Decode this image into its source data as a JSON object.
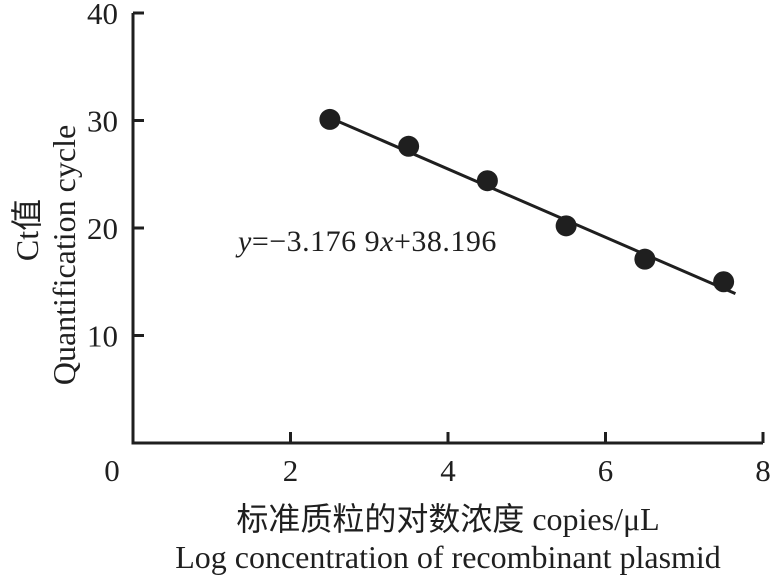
{
  "chart_data": {
    "type": "scatter",
    "title": "",
    "x": [
      2.5,
      3.5,
      4.5,
      5.5,
      6.5,
      7.5
    ],
    "y": [
      30.1,
      27.6,
      24.4,
      20.2,
      17.1,
      15.0
    ],
    "equation": "y=−3.176 9x+38.196",
    "regression": {
      "slope": -3.1769,
      "intercept": 38.196,
      "line_x_start": 2.45,
      "line_x_end": 7.65
    },
    "xlim": [
      0,
      8
    ],
    "ylim": [
      0,
      40
    ],
    "x_ticks": [
      0,
      2,
      4,
      6,
      8
    ],
    "y_ticks": [
      10,
      20,
      30,
      40
    ],
    "xlabel_zh": "标准质粒的对数浓度 copies/μL",
    "xlabel_en": "Log concentration of recombinant plasmid",
    "ylabel_zh": "Ct值",
    "ylabel_en": "Quantification cycle",
    "grid": false,
    "legend": "none",
    "ink_color": "#1f1f1f",
    "background_color": "#ffffff"
  }
}
